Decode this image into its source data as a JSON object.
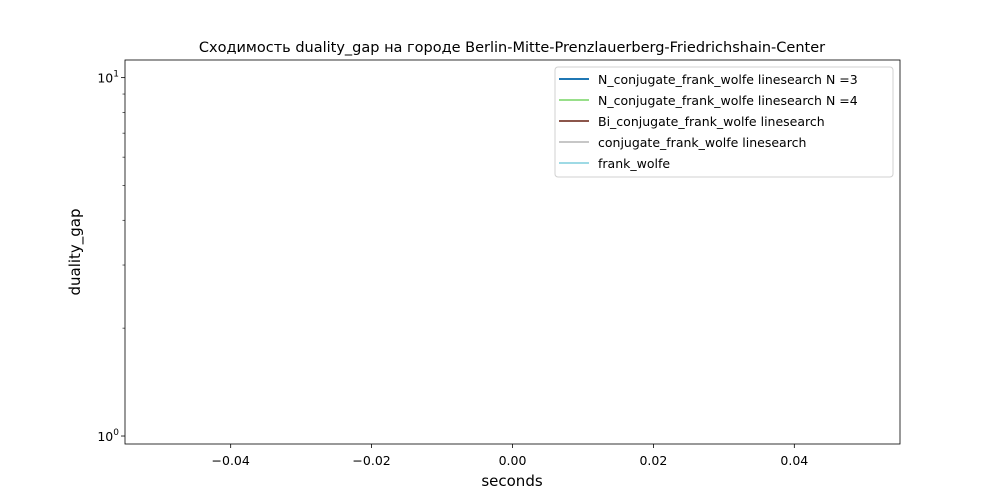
{
  "chart_data": {
    "type": "line",
    "title": "Сходимость duality_gap на городе Berlin-Mitte-Prenzlauerberg-Friedrichshain-Center",
    "xlabel": "seconds",
    "ylabel": "duality_gap",
    "xlim": [
      -0.055,
      0.055
    ],
    "ylim": [
      0.95,
      11.2
    ],
    "yscale": "log",
    "grid": false,
    "legend_position": "top-right",
    "x_ticks": [
      {
        "value": -0.04,
        "label": "−0.04"
      },
      {
        "value": -0.02,
        "label": "−0.02"
      },
      {
        "value": 0.0,
        "label": "0.00"
      },
      {
        "value": 0.02,
        "label": "0.02"
      },
      {
        "value": 0.04,
        "label": "0.04"
      }
    ],
    "y_major_ticks": [
      {
        "value": 1,
        "base": "10",
        "exp": "0"
      },
      {
        "value": 10,
        "base": "10",
        "exp": "1"
      }
    ],
    "y_minor_ticks": [
      2,
      3,
      4,
      5,
      6,
      7,
      8,
      9
    ],
    "series": [
      {
        "name": "N_conjugate_frank_wolfe linesearch N =3",
        "color": "#1f77b4",
        "x": [],
        "y": []
      },
      {
        "name": "N_conjugate_frank_wolfe linesearch N =4",
        "color": "#98df8a",
        "x": [],
        "y": []
      },
      {
        "name": "Bi_conjugate_frank_wolfe linesearch",
        "color": "#8c564b",
        "x": [],
        "y": []
      },
      {
        "name": "conjugate_frank_wolfe linesearch",
        "color": "#c7c7c7",
        "x": [],
        "y": []
      },
      {
        "name": "frank_wolfe",
        "color": "#9edae5",
        "x": [],
        "y": []
      }
    ]
  }
}
